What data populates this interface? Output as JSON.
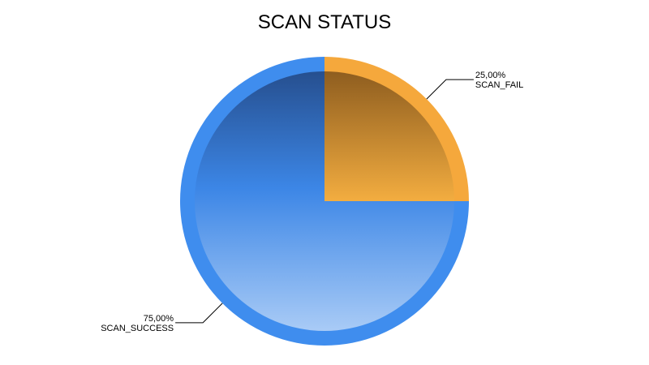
{
  "chart_data": {
    "type": "pie",
    "title": "SCAN STATUS",
    "slices": [
      {
        "label": "SCAN_FAIL",
        "value": 25.0,
        "percent_label": "25,00%",
        "color": "#F5A83C"
      },
      {
        "label": "SCAN_SUCCESS",
        "value": 75.0,
        "percent_label": "75,00%",
        "color": "#3F8DEE"
      }
    ]
  }
}
